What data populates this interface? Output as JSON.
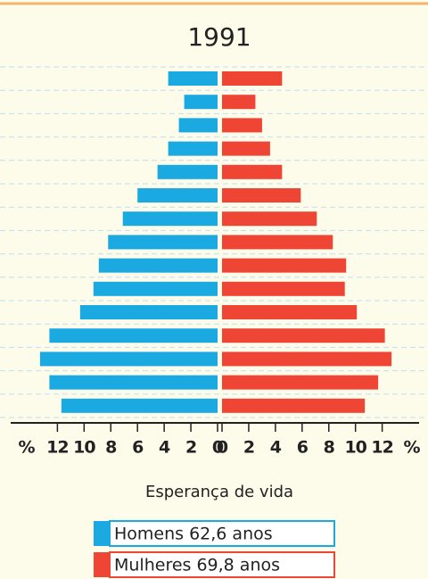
{
  "chart_data": {
    "type": "pyramid",
    "title": "1991",
    "xlabel": "Esperança de vida",
    "axis_unit": "%",
    "xlim": [
      0,
      15.5
    ],
    "xticks": [
      0,
      2,
      4,
      6,
      8,
      10,
      12
    ],
    "grid": true,
    "series": [
      {
        "name": "Homens 62,6 anos",
        "color": "#1aa9e0",
        "side": "left",
        "values": [
          3.7,
          2.5,
          2.9,
          3.7,
          4.5,
          6.0,
          7.1,
          8.2,
          8.9,
          9.3,
          10.3,
          12.6,
          13.3,
          12.6,
          11.7
        ]
      },
      {
        "name": "Mulheres 69,8 anos",
        "color": "#ef4535",
        "side": "right",
        "values": [
          4.5,
          2.5,
          3.0,
          3.6,
          4.5,
          5.9,
          7.1,
          8.3,
          9.3,
          9.2,
          10.1,
          12.2,
          12.7,
          11.7,
          10.7
        ]
      }
    ]
  }
}
